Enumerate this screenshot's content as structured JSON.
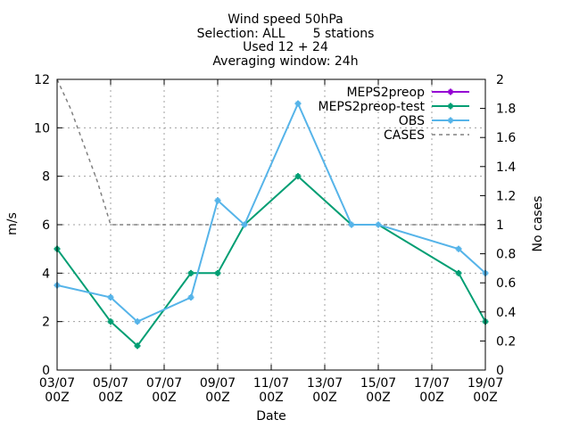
{
  "chart_data": {
    "type": "line",
    "title_lines": [
      "Wind speed 50hPa",
      "Selection: ALL       5 stations",
      "Used 12 + 24",
      "Averaging window: 24h"
    ],
    "xlabel": "Date",
    "ylabel": "m/s",
    "y2label": "No cases",
    "x_tick_labels": [
      [
        "03/07",
        "00Z"
      ],
      [
        "05/07",
        "00Z"
      ],
      [
        "07/07",
        "00Z"
      ],
      [
        "09/07",
        "00Z"
      ],
      [
        "11/07",
        "00Z"
      ],
      [
        "13/07",
        "00Z"
      ],
      [
        "15/07",
        "00Z"
      ],
      [
        "17/07",
        "00Z"
      ],
      [
        "19/07",
        "00Z"
      ]
    ],
    "xlim": [
      0,
      16
    ],
    "ylim": [
      0,
      12
    ],
    "y_ticks": [
      0,
      2,
      4,
      6,
      8,
      10,
      12
    ],
    "y2lim": [
      0,
      2
    ],
    "y2_ticks": [
      "0",
      "0.2",
      "0.4",
      "0.6",
      "0.8",
      "1",
      "1.2",
      "1.4",
      "1.6",
      "1.8",
      "2"
    ],
    "grid": true,
    "legend_position": "top-right",
    "series": [
      {
        "name": "MEPS2preop",
        "color": "#9400d3",
        "marker": "plus",
        "axis": "y",
        "x": [],
        "y": []
      },
      {
        "name": "MEPS2preop-test",
        "color": "#009e73",
        "marker": "plus",
        "axis": "y",
        "x": [
          0,
          2,
          3,
          5,
          6,
          7,
          9,
          11,
          12,
          15,
          16
        ],
        "y": [
          5,
          2,
          1,
          4,
          4,
          6,
          8,
          6,
          6,
          4,
          2
        ]
      },
      {
        "name": "OBS",
        "color": "#56b4e9",
        "marker": "plus",
        "axis": "y",
        "x": [
          0,
          2,
          3,
          5,
          6,
          7,
          9,
          11,
          12,
          15,
          16
        ],
        "y": [
          3.5,
          3,
          2,
          3,
          7,
          6,
          11,
          6,
          6,
          5,
          4
        ]
      },
      {
        "name": "CASES",
        "color": "#808080",
        "style": "dashed",
        "axis": "y2",
        "x": [
          0,
          0.5,
          1,
          1.5,
          2,
          16
        ],
        "y": [
          2,
          1.8,
          1.55,
          1.3,
          1,
          1
        ]
      }
    ]
  }
}
